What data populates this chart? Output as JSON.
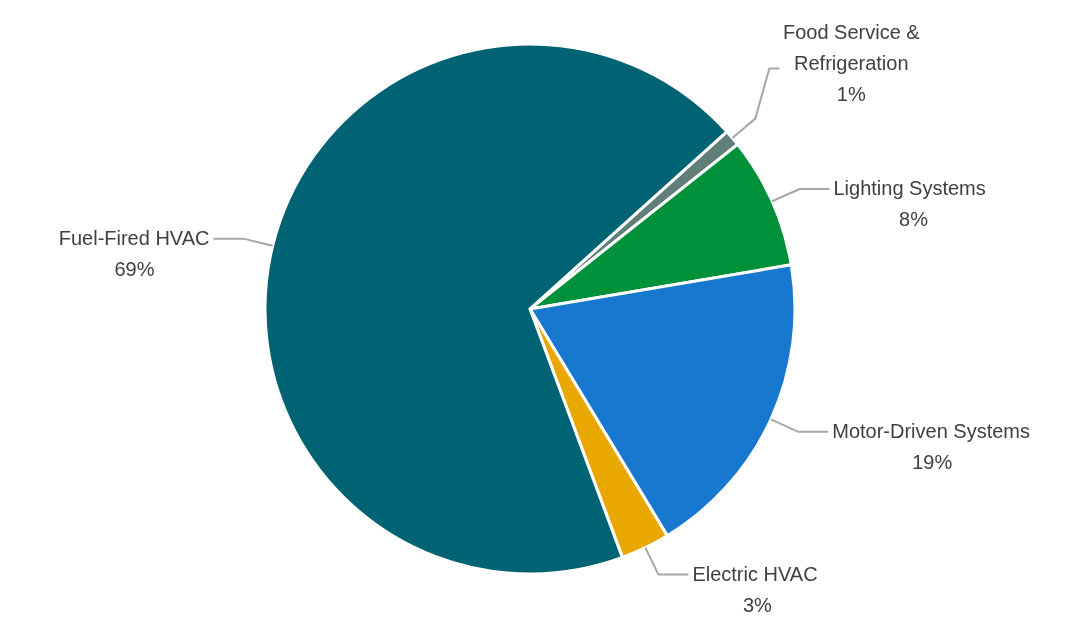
{
  "chart_data": {
    "type": "pie",
    "categories": [
      "Food Service & Refrigeration",
      "Lighting Systems",
      "Motor-Driven Systems",
      "Electric HVAC",
      "Fuel-Fired HVAC"
    ],
    "values": [
      1,
      8,
      19,
      3,
      69
    ],
    "value_labels": [
      "1%",
      "8%",
      "19%",
      "3%",
      "69%"
    ],
    "colors": [
      "#5f7f78",
      "#00913a",
      "#1878d0",
      "#e8a800",
      "#006374"
    ],
    "legend": false
  }
}
